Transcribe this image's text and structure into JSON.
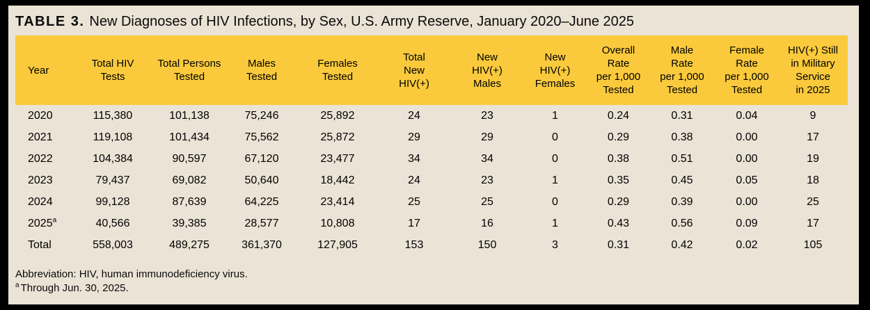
{
  "header": {
    "table_label": "TABLE 3.",
    "title_text": "New Diagnoses of HIV Infections, by Sex, U.S. Army Reserve, January 2020–June 2025"
  },
  "colors": {
    "header_band": "#FACA3C",
    "page_background": "#EBE3D5",
    "frame_border": "#000000",
    "text": "#000000"
  },
  "chart_data": {
    "type": "table",
    "title": "TABLE 3. New Diagnoses of HIV Infections, by Sex, U.S. Army Reserve, January 2020–June 2025",
    "columns": [
      "Year",
      "Total HIV Tests",
      "Total Persons Tested",
      "Males Tested",
      "Females Tested",
      "Total New HIV(+)",
      "New HIV(+) Males",
      "New HIV(+) Females",
      "Overall Rate per 1,000 Tested",
      "Male Rate per 1,000 Tested",
      "Female Rate per 1,000 Tested",
      "HIV(+) Still in Military Service in 2025"
    ],
    "column_display": [
      "Year",
      "Total HIV\nTests",
      "Total Persons\nTested",
      "Males\nTested",
      "Females\nTested",
      "Total\nNew\nHIV(+)",
      "New\nHIV(+)\nMales",
      "New\nHIV(+)\nFemales",
      "Overall\nRate\nper 1,000\nTested",
      "Male\nRate\nper 1,000\nTested",
      "Female\nRate\nper 1,000\nTested",
      "HIV(+) Still\nin Military\nService\nin 2025"
    ],
    "rows": [
      {
        "cells": [
          "2020",
          "115,380",
          "101,138",
          "75,246",
          "25,892",
          "24",
          "23",
          "1",
          "0.24",
          "0.31",
          "0.04",
          "9"
        ]
      },
      {
        "cells": [
          "2021",
          "119,108",
          "101,434",
          "75,562",
          "25,872",
          "29",
          "29",
          "0",
          "0.29",
          "0.38",
          "0.00",
          "17"
        ]
      },
      {
        "cells": [
          "2022",
          "104,384",
          "90,597",
          "67,120",
          "23,477",
          "34",
          "34",
          "0",
          "0.38",
          "0.51",
          "0.00",
          "19"
        ]
      },
      {
        "cells": [
          "2023",
          "79,437",
          "69,082",
          "50,640",
          "18,442",
          "24",
          "23",
          "1",
          "0.35",
          "0.45",
          "0.05",
          "18"
        ]
      },
      {
        "cells": [
          "2024",
          "99,128",
          "87,639",
          "64,225",
          "23,414",
          "25",
          "25",
          "0",
          "0.29",
          "0.39",
          "0.00",
          "25"
        ]
      },
      {
        "cells": [
          "2025",
          "40,566",
          "39,385",
          "28,577",
          "10,808",
          "17",
          "16",
          "1",
          "0.43",
          "0.56",
          "0.09",
          "17"
        ],
        "year_sup": "a"
      },
      {
        "cells": [
          "Total",
          "558,003",
          "489,275",
          "361,370",
          "127,905",
          "153",
          "150",
          "3",
          "0.31",
          "0.42",
          "0.02",
          "105"
        ]
      }
    ]
  },
  "footnotes": {
    "abbreviation": "Abbreviation: HIV, human immunodeficiency virus.",
    "marker": "a",
    "note": "Through Jun. 30, 2025."
  }
}
